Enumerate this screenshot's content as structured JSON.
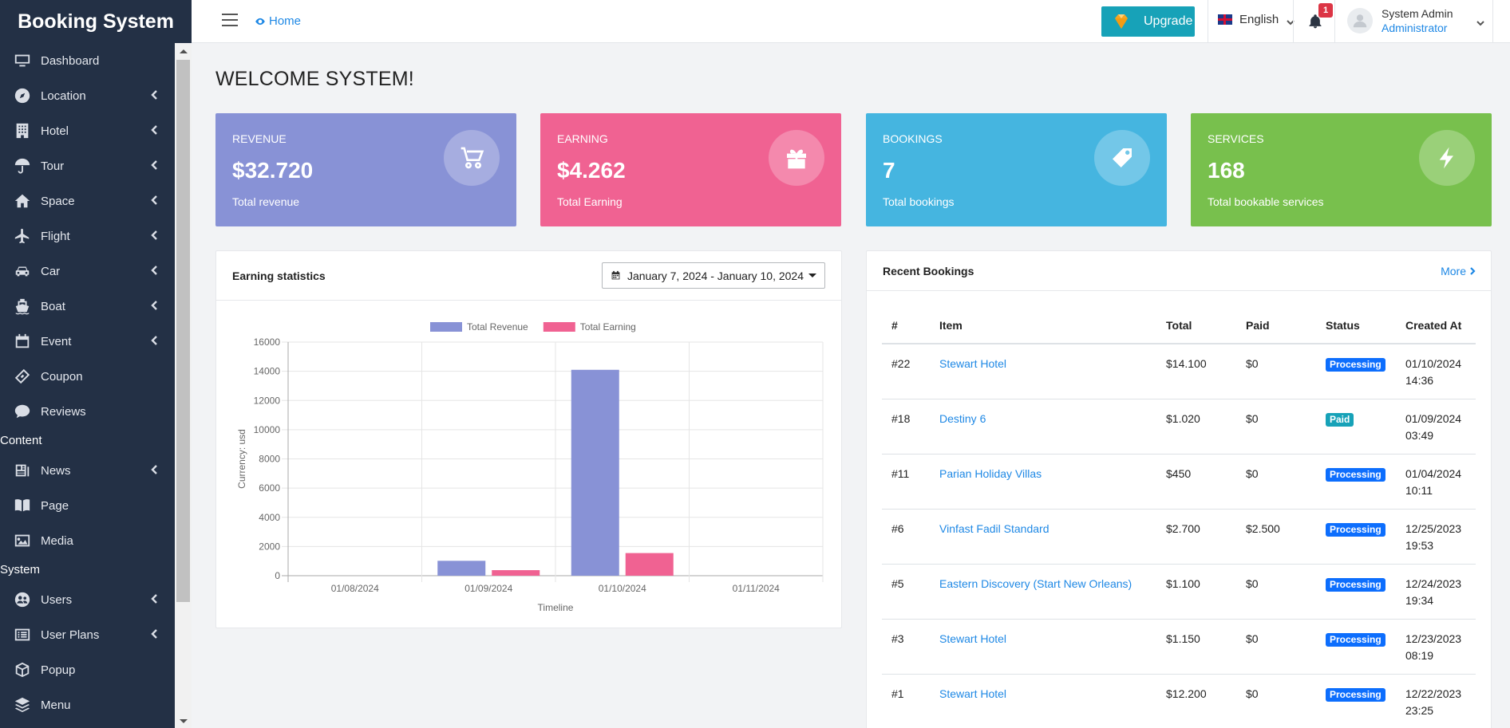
{
  "brand": "Booking System",
  "sidebar": {
    "items": [
      {
        "label": "Dashboard",
        "icon": "monitor-icon",
        "has_sub": false
      },
      {
        "label": "Location",
        "icon": "compass-icon",
        "has_sub": true
      },
      {
        "label": "Hotel",
        "icon": "building-icon",
        "has_sub": true
      },
      {
        "label": "Tour",
        "icon": "umbrella-icon",
        "has_sub": true
      },
      {
        "label": "Space",
        "icon": "home-icon",
        "has_sub": true
      },
      {
        "label": "Flight",
        "icon": "plane-icon",
        "has_sub": true
      },
      {
        "label": "Car",
        "icon": "car-icon",
        "has_sub": true
      },
      {
        "label": "Boat",
        "icon": "ship-icon",
        "has_sub": true
      },
      {
        "label": "Event",
        "icon": "calendar-icon",
        "has_sub": true
      },
      {
        "label": "Coupon",
        "icon": "ticket-icon",
        "has_sub": false
      },
      {
        "label": "Reviews",
        "icon": "comment-icon",
        "has_sub": false
      }
    ],
    "section_content": "Content",
    "content_items": [
      {
        "label": "News",
        "icon": "newspaper-icon",
        "has_sub": true
      },
      {
        "label": "Page",
        "icon": "book-icon",
        "has_sub": false
      },
      {
        "label": "Media",
        "icon": "image-icon",
        "has_sub": false
      }
    ],
    "section_system": "System",
    "system_items": [
      {
        "label": "Users",
        "icon": "users-icon",
        "has_sub": true
      },
      {
        "label": "User Plans",
        "icon": "list-icon",
        "has_sub": true
      },
      {
        "label": "Popup",
        "icon": "box-icon",
        "has_sub": false
      },
      {
        "label": "Menu",
        "icon": "layers-icon",
        "has_sub": false
      }
    ]
  },
  "topbar": {
    "home": "Home",
    "upgrade": "Upgrade",
    "language": "English",
    "notifications_count": "1",
    "user_name": "System Admin",
    "user_role": "Administrator"
  },
  "page_title": "WELCOME SYSTEM!",
  "cards": [
    {
      "label": "REVENUE",
      "value": "$32.720",
      "desc": "Total revenue",
      "color": "#8892d6",
      "icon": "cart-icon"
    },
    {
      "label": "EARNING",
      "value": "$4.262",
      "desc": "Total Earning",
      "color": "#f06292",
      "icon": "gift-icon"
    },
    {
      "label": "BOOKINGS",
      "value": "7",
      "desc": "Total bookings",
      "color": "#45b5e0",
      "icon": "tags-icon"
    },
    {
      "label": "SERVICES",
      "value": "168",
      "desc": "Total bookable services",
      "color": "#78c04d",
      "icon": "bolt-icon"
    }
  ],
  "earning_panel": {
    "title": "Earning statistics",
    "date_range": "January 7, 2024 - January 10, 2024"
  },
  "chart_data": {
    "type": "bar",
    "categories": [
      "01/08/2024",
      "01/09/2024",
      "01/10/2024",
      "01/11/2024"
    ],
    "series": [
      {
        "name": "Total Revenue",
        "values": [
          0,
          1020,
          14100,
          0
        ],
        "color": "#8892d6"
      },
      {
        "name": "Total Earning",
        "values": [
          0,
          380,
          1550,
          0
        ],
        "color": "#f06292"
      }
    ],
    "xlabel": "Timeline",
    "ylabel": "Currency: usd",
    "ylim": [
      0,
      16000
    ],
    "yticks": [
      0,
      2000,
      4000,
      6000,
      8000,
      10000,
      12000,
      14000,
      16000
    ],
    "grid": true,
    "legend": "top"
  },
  "bookings_panel": {
    "title": "Recent Bookings",
    "more": "More",
    "columns": [
      "#",
      "Item",
      "Total",
      "Paid",
      "Status",
      "Created At"
    ],
    "rows": [
      {
        "id": "#22",
        "item": "Stewart Hotel",
        "total": "$14.100",
        "paid": "$0",
        "status": "Processing",
        "status_color": "#0d6efd",
        "date": "01/10/2024",
        "time": "14:36"
      },
      {
        "id": "#18",
        "item": "Destiny 6",
        "total": "$1.020",
        "paid": "$0",
        "status": "Paid",
        "status_color": "#17a2b8",
        "date": "01/09/2024",
        "time": "03:49"
      },
      {
        "id": "#11",
        "item": "Parian Holiday Villas",
        "total": "$450",
        "paid": "$0",
        "status": "Processing",
        "status_color": "#0d6efd",
        "date": "01/04/2024",
        "time": "10:11"
      },
      {
        "id": "#6",
        "item": "Vinfast Fadil Standard",
        "total": "$2.700",
        "paid": "$2.500",
        "status": "Processing",
        "status_color": "#0d6efd",
        "date": "12/25/2023",
        "time": "19:53"
      },
      {
        "id": "#5",
        "item": "Eastern Discovery (Start New Orleans)",
        "total": "$1.100",
        "paid": "$0",
        "status": "Processing",
        "status_color": "#0d6efd",
        "date": "12/24/2023",
        "time": "19:34"
      },
      {
        "id": "#3",
        "item": "Stewart Hotel",
        "total": "$1.150",
        "paid": "$0",
        "status": "Processing",
        "status_color": "#0d6efd",
        "date": "12/23/2023",
        "time": "08:19"
      },
      {
        "id": "#1",
        "item": "Stewart Hotel",
        "total": "$12.200",
        "paid": "$0",
        "status": "Processing",
        "status_color": "#0d6efd",
        "date": "12/22/2023",
        "time": "23:25"
      }
    ]
  }
}
